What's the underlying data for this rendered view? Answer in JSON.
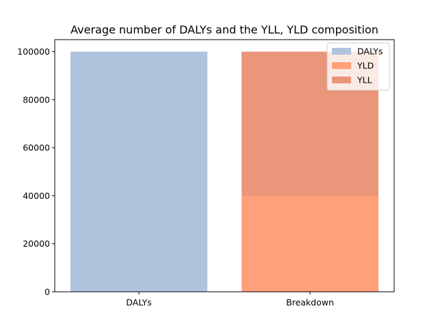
{
  "chart_data": {
    "type": "bar",
    "title": "Average number of DALYs and the YLL, YLD composition",
    "xlabel": "",
    "ylabel": "",
    "categories": [
      "DALYs",
      "Breakdown"
    ],
    "ylim": [
      0,
      105000
    ],
    "yticks": [
      0,
      20000,
      40000,
      60000,
      80000,
      100000
    ],
    "ytick_labels": [
      "0",
      "20000",
      "40000",
      "60000",
      "80000",
      "100000"
    ],
    "series": [
      {
        "name": "DALYs",
        "color": "#b0c4de",
        "category": "DALYs",
        "bottom": 0,
        "value": 100000
      },
      {
        "name": "YLD",
        "color": "#ffa07a",
        "category": "Breakdown",
        "bottom": 0,
        "value": 40000
      },
      {
        "name": "YLL",
        "color": "#e9967a",
        "category": "Breakdown",
        "bottom": 40000,
        "value": 60000
      }
    ],
    "legend_position": "top-right",
    "grid": false
  }
}
